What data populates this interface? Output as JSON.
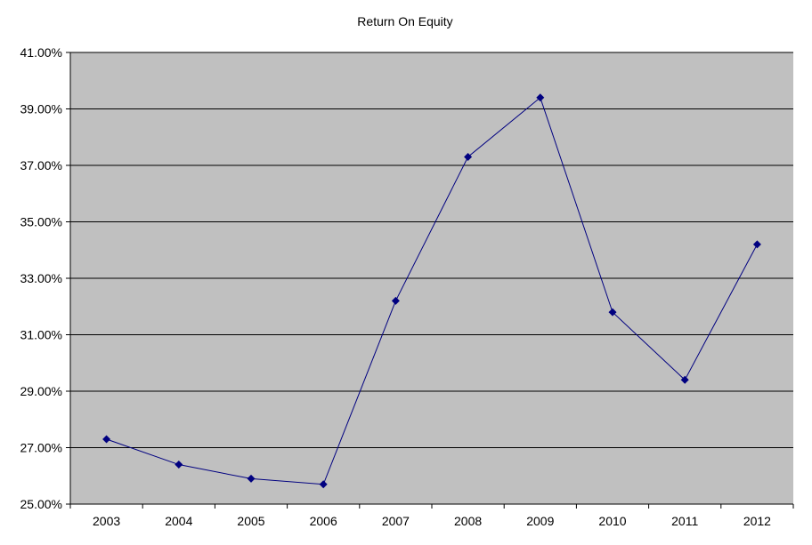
{
  "chart_data": {
    "type": "line",
    "title": "Return On Equity",
    "xlabel": "",
    "ylabel": "",
    "categories": [
      "2003",
      "2004",
      "2005",
      "2006",
      "2007",
      "2008",
      "2009",
      "2010",
      "2011",
      "2012"
    ],
    "series": [
      {
        "values": [
          27.3,
          26.4,
          25.9,
          25.7,
          32.2,
          37.3,
          39.4,
          31.8,
          29.4,
          34.2
        ]
      }
    ],
    "ylim": [
      25,
      41
    ],
    "yticks": [
      25,
      27,
      29,
      31,
      33,
      35,
      37,
      39,
      41
    ],
    "ytick_labels": [
      "25.00%",
      "27.00%",
      "29.00%",
      "31.00%",
      "33.00%",
      "35.00%",
      "37.00%",
      "39.00%",
      "41.00%"
    ],
    "grid": true,
    "legend": "none",
    "colors": {
      "plot_background": "#c0c0c0",
      "line": "#000080",
      "marker": "#000080",
      "gridline": "#000000"
    },
    "marker": "diamond"
  }
}
